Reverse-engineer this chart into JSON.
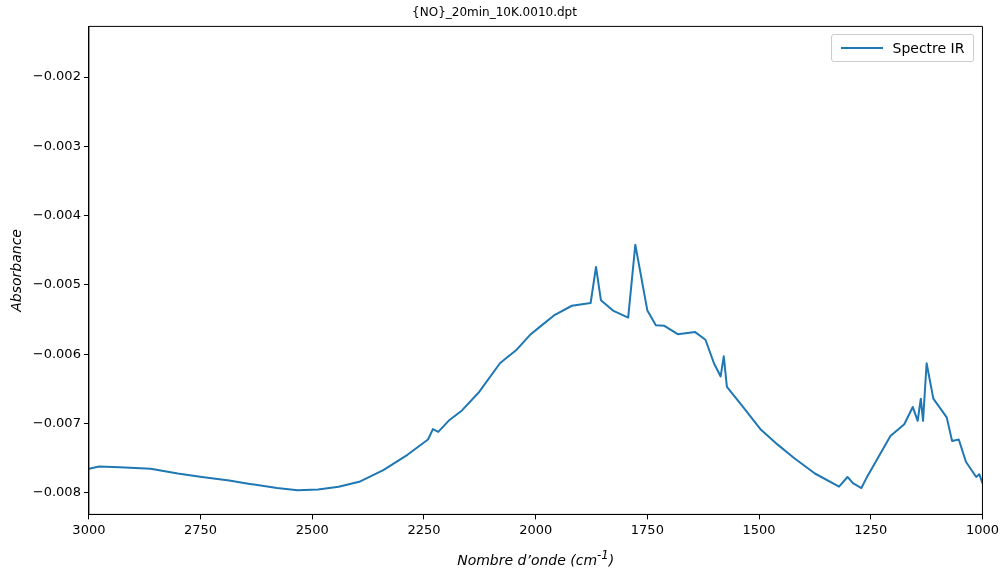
{
  "chart_data": {
    "type": "line",
    "title": "{NO}_20min_10K.0010.dpt",
    "xlabel": "Nombre d’onde (cm$^{-1}$)",
    "ylabel": "Absorbance",
    "xlim": [
      3000,
      1000
    ],
    "ylim": [
      -0.00831,
      -0.00127
    ],
    "xticks": [
      3000,
      2750,
      2500,
      2250,
      2000,
      1750,
      1500,
      1250,
      1000
    ],
    "yticks": [
      {
        "value": -0.008,
        "label": "−0.008"
      },
      {
        "value": -0.007,
        "label": "−0.007"
      },
      {
        "value": -0.006,
        "label": "−0.006"
      },
      {
        "value": -0.005,
        "label": "−0.005"
      },
      {
        "value": -0.004,
        "label": "−0.004"
      },
      {
        "value": -0.003,
        "label": "−0.003"
      },
      {
        "value": -0.002,
        "label": "−0.002"
      }
    ],
    "grid": false,
    "legend": "top right",
    "marker": "none",
    "line_style": "solid",
    "series": [
      {
        "name": "Spectre IR",
        "color": "#1f77b4",
        "x": [
          3000,
          2977,
          2931,
          2862,
          2801,
          2747,
          2686,
          2640,
          2579,
          2533,
          2487,
          2441,
          2395,
          2341,
          2287,
          2241,
          2230,
          2218,
          2195,
          2165,
          2126,
          2080,
          2042,
          2011,
          1988,
          1957,
          1919,
          1877,
          1865,
          1854,
          1827,
          1793,
          1777,
          1750,
          1731,
          1712,
          1682,
          1643,
          1620,
          1601,
          1586,
          1579,
          1572,
          1536,
          1497,
          1459,
          1421,
          1375,
          1321,
          1302,
          1290,
          1271,
          1260,
          1206,
          1175,
          1156,
          1145,
          1138,
          1133,
          1125,
          1110,
          1080,
          1068,
          1053,
          1037,
          1014,
          1007,
          1000
        ],
        "values": [
          -0.00765,
          -0.00762,
          -0.00763,
          -0.00765,
          -0.00772,
          -0.00777,
          -0.00782,
          -0.00787,
          -0.00793,
          -0.00796,
          -0.00795,
          -0.00791,
          -0.00784,
          -0.00767,
          -0.00745,
          -0.00723,
          -0.00708,
          -0.00712,
          -0.00696,
          -0.00681,
          -0.00654,
          -0.00613,
          -0.00593,
          -0.00571,
          -0.00559,
          -0.00543,
          -0.0053,
          -0.00526,
          -0.00474,
          -0.00522,
          -0.00537,
          -0.00547,
          -0.00442,
          -0.00537,
          -0.00558,
          -0.00559,
          -0.00571,
          -0.00568,
          -0.00579,
          -0.00613,
          -0.00632,
          -0.00603,
          -0.00647,
          -0.00676,
          -0.00708,
          -0.0073,
          -0.0075,
          -0.00772,
          -0.00791,
          -0.00777,
          -0.00786,
          -0.00793,
          -0.00779,
          -0.00718,
          -0.00701,
          -0.00676,
          -0.00696,
          -0.00664,
          -0.00696,
          -0.00613,
          -0.00664,
          -0.00691,
          -0.00725,
          -0.00723,
          -0.00755,
          -0.00777,
          -0.00773,
          -0.00786
        ]
      }
    ]
  }
}
